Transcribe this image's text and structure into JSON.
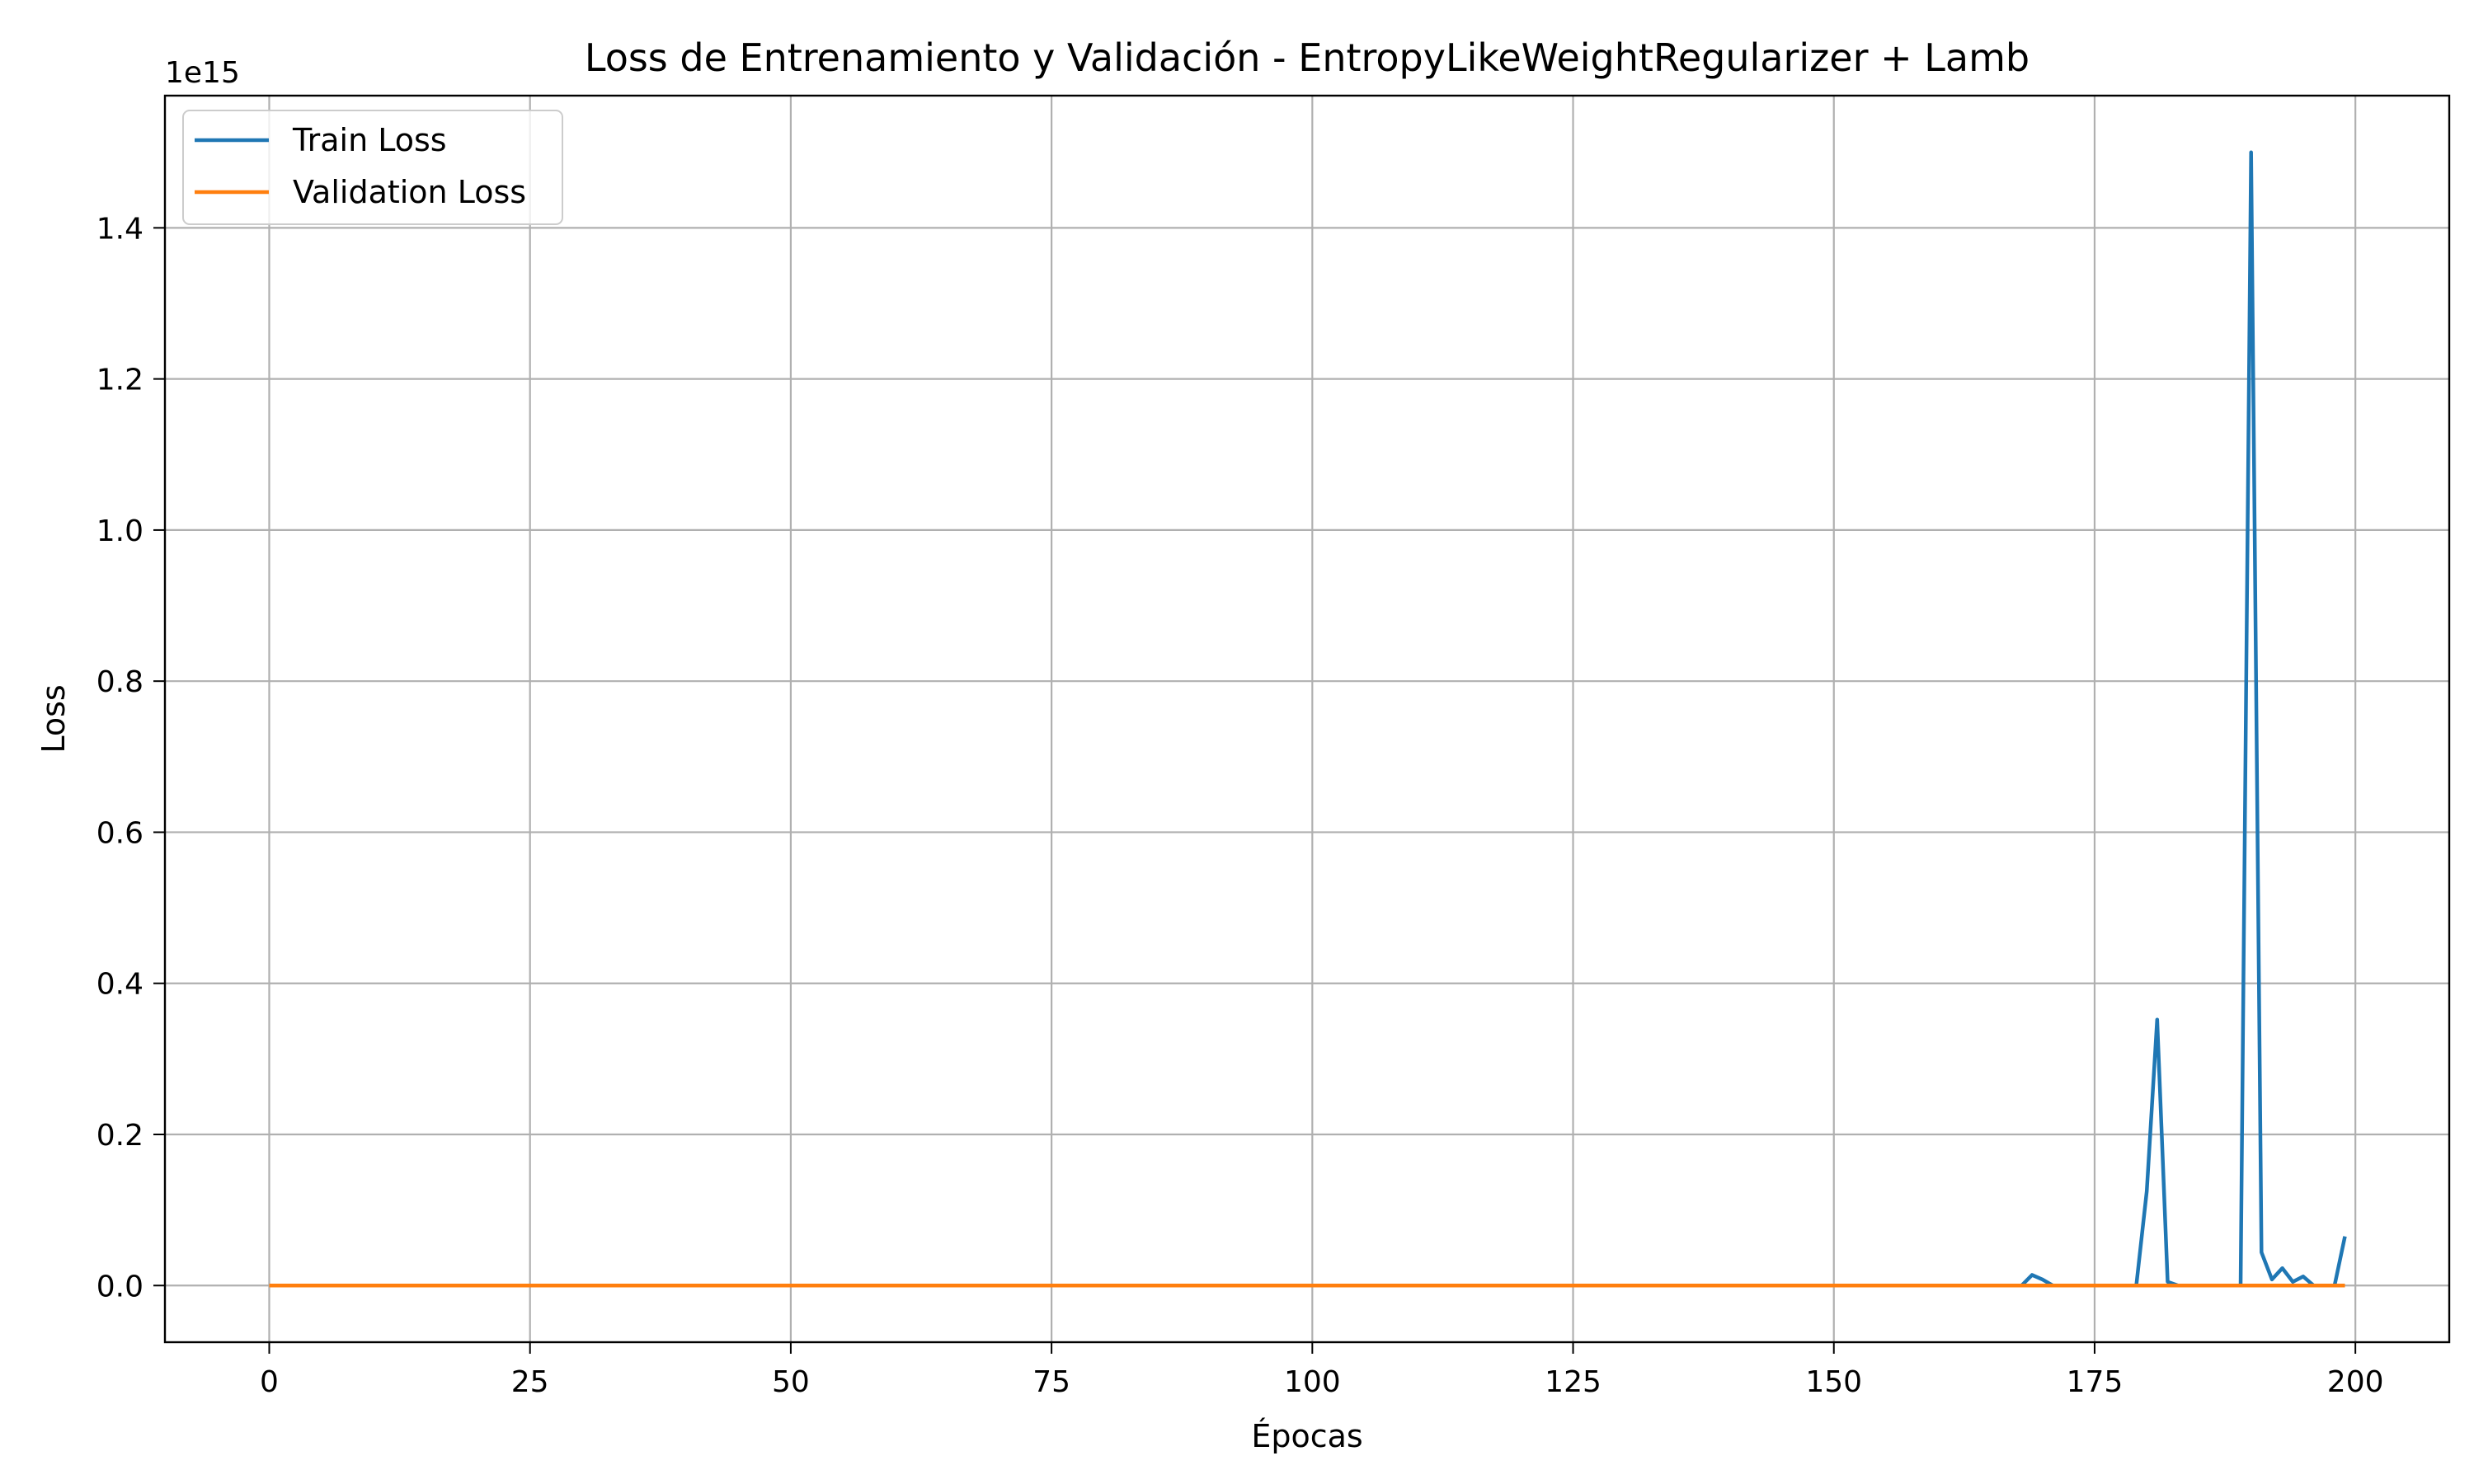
{
  "chart_data": {
    "type": "line",
    "title": "Loss de Entrenamiento y Validación - EntropyLikeWeightRegularizer + Lamb",
    "xlabel": "Épocas",
    "ylabel": "Loss",
    "y_offset_text": "1e15",
    "xlim": [
      -10,
      209
    ],
    "ylim": [
      -0.075,
      1.575
    ],
    "x_ticks": [
      0,
      25,
      50,
      75,
      100,
      125,
      150,
      175,
      200
    ],
    "x_tick_labels": [
      "0",
      "25",
      "50",
      "75",
      "100",
      "125",
      "150",
      "175",
      "200"
    ],
    "y_ticks": [
      0.0,
      0.2,
      0.4,
      0.6,
      0.8,
      1.0,
      1.2,
      1.4
    ],
    "y_tick_labels": [
      "0.0",
      "0.2",
      "0.4",
      "0.6",
      "0.8",
      "1.0",
      "1.2",
      "1.4"
    ],
    "grid": true,
    "legend_position": "top-left",
    "series": [
      {
        "name": "Train Loss",
        "color": "#1f77b4",
        "points": [
          [
            0,
            0
          ],
          [
            168,
            0
          ],
          [
            169,
            0.014
          ],
          [
            170,
            0.008
          ],
          [
            171,
            0.0
          ],
          [
            179,
            0.0
          ],
          [
            180,
            0.125
          ],
          [
            181,
            0.352
          ],
          [
            182,
            0.005
          ],
          [
            183,
            0.0
          ],
          [
            189,
            0.0
          ],
          [
            190,
            1.5
          ],
          [
            191,
            0.044
          ],
          [
            192,
            0.008
          ],
          [
            193,
            0.023
          ],
          [
            194,
            0.005
          ],
          [
            195,
            0.012
          ],
          [
            196,
            0.0
          ],
          [
            198,
            0.0
          ],
          [
            199,
            0.065
          ]
        ]
      },
      {
        "name": "Validation Loss",
        "color": "#ff7f0e",
        "points": [
          [
            0,
            0
          ],
          [
            199,
            0
          ]
        ]
      }
    ]
  }
}
